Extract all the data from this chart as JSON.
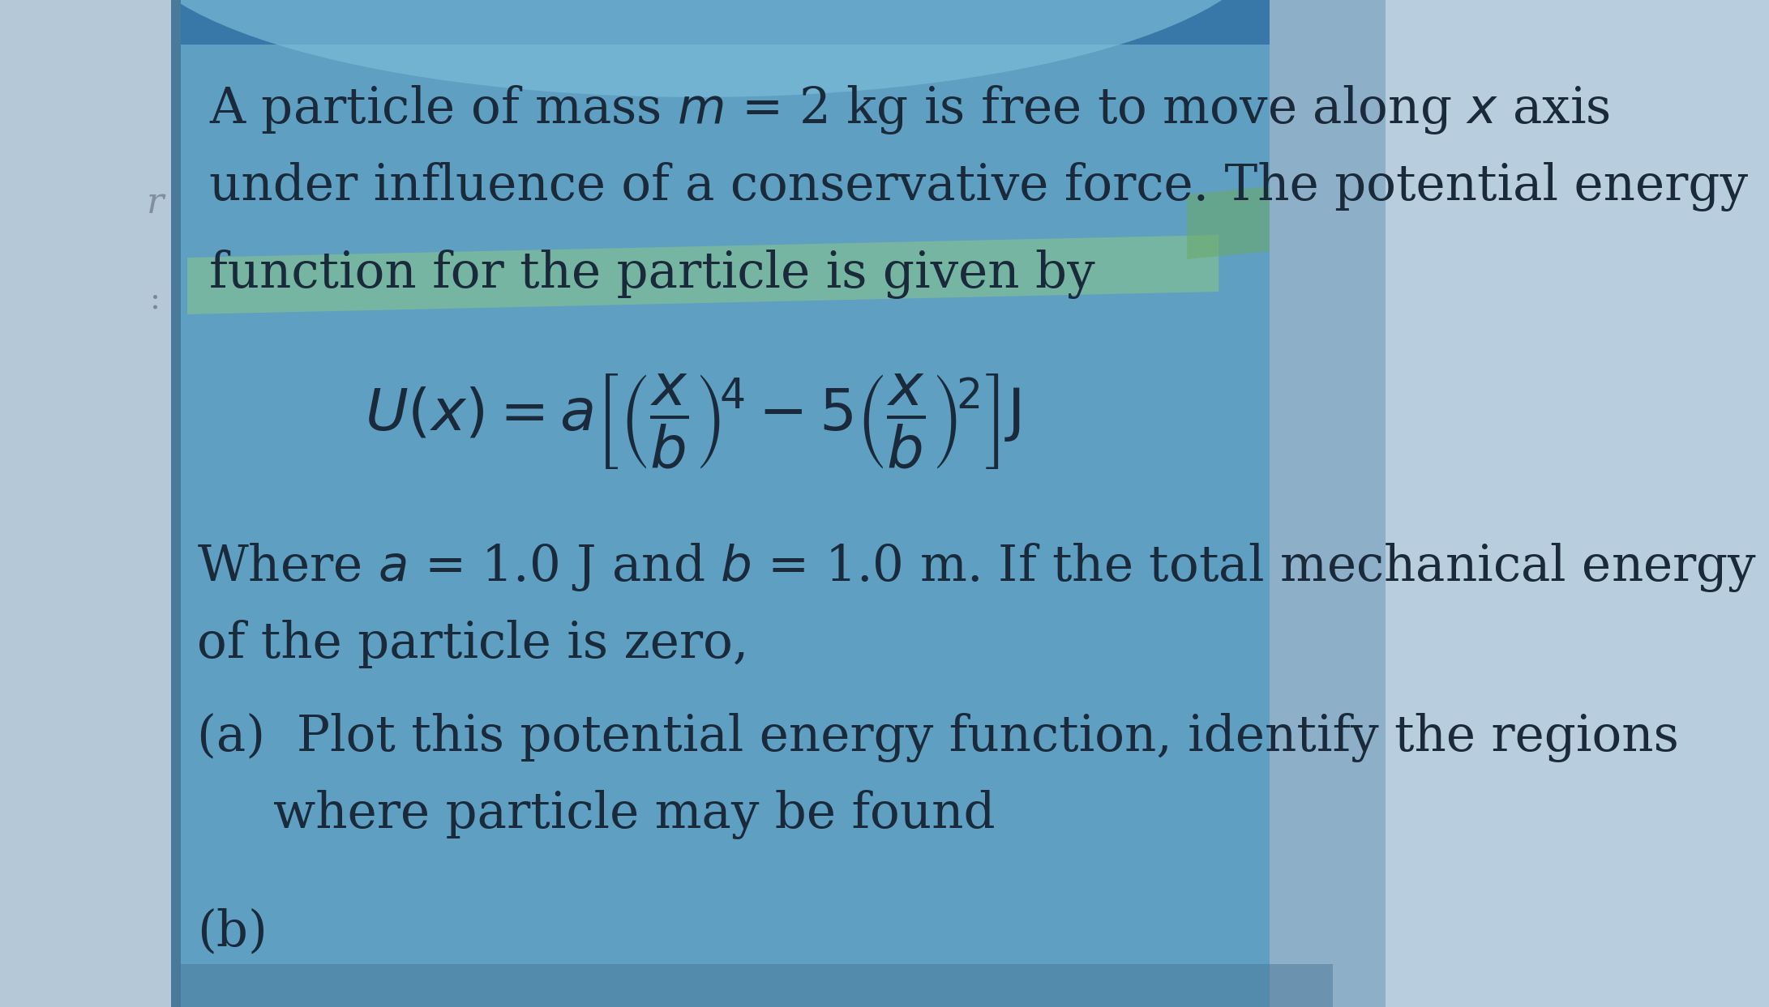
{
  "bg_left": "#b8cede",
  "bg_main": "#5a9dc0",
  "bg_right": "#8aafc8",
  "bg_top_dark": "#3a7aaa",
  "text_color": "#1a2a3a",
  "highlight_color_green": "#7ab87a",
  "line1": "A particle of mass $m$ = 2 kg is free to move along $x$ axis",
  "line2": "under influence of a conservative force. The potential energy",
  "line3": "function for the particle is given by",
  "formula": "$U(x) = a\\left[\\left(\\dfrac{x}{b}\\right)^{\\!4} - 5\\left(\\dfrac{x}{b}\\right)^{\\!2}\\right]\\mathrm{J}$",
  "where1": "Where $a$ = 1.0 J and $b$ = 1.0 m. If the total mechanical energy",
  "where2": "of the particle is zero,",
  "part_a1": "(a)  Plot this potential energy function, identify the regions",
  "part_a2": "     where particle may be found",
  "part_b": "(b)",
  "fs_title": 44,
  "fs_formula": 52,
  "fs_body": 44
}
